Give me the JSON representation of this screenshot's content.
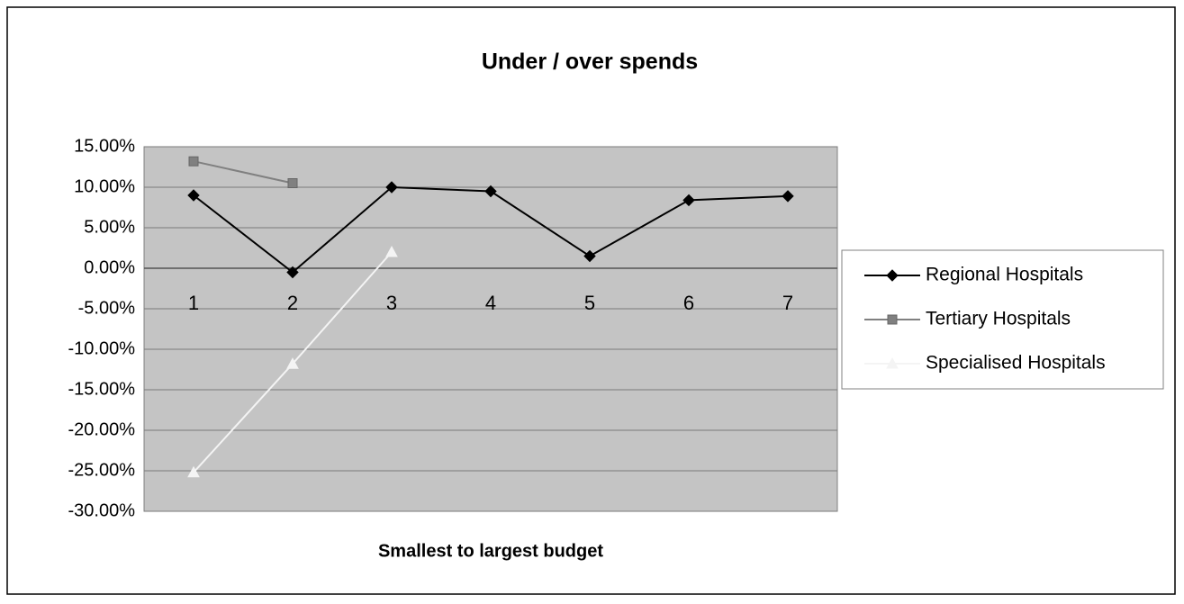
{
  "chart_data": {
    "type": "line",
    "title": "Under / over spends",
    "x_label": "Smallest to largest budget",
    "categories": [
      "1",
      "2",
      "3",
      "4",
      "5",
      "6",
      "7"
    ],
    "series": [
      {
        "name": "Regional Hospitals",
        "color": "#000000",
        "marker": "diamond",
        "values": [
          9,
          -0.5,
          10,
          9.5,
          1.5,
          8.4,
          8.9
        ]
      },
      {
        "name": "Tertiary Hospitals",
        "color": "#808080",
        "marker": "square",
        "values": [
          13.2,
          10.5,
          null,
          null,
          null,
          null,
          null
        ]
      },
      {
        "name": "Specialised Hospitals",
        "color": "#f4f4f4",
        "marker": "triangle",
        "values": [
          -25.2,
          -11.8,
          2,
          null,
          null,
          null,
          null
        ]
      }
    ],
    "ylim": [
      -30,
      15
    ],
    "yticks": [
      {
        "value": 15,
        "label": "15.00%"
      },
      {
        "value": 10,
        "label": "10.00%"
      },
      {
        "value": 5,
        "label": "5.00%"
      },
      {
        "value": 0,
        "label": "0.00%"
      },
      {
        "value": -5,
        "label": "-5.00%"
      },
      {
        "value": -10,
        "label": "-10.00%"
      },
      {
        "value": -15,
        "label": "-15.00%"
      },
      {
        "value": -20,
        "label": "-20.00%"
      },
      {
        "value": -25,
        "label": "-25.00%"
      },
      {
        "value": -30,
        "label": "-30.00%"
      }
    ],
    "grid": true,
    "legend": "right"
  }
}
